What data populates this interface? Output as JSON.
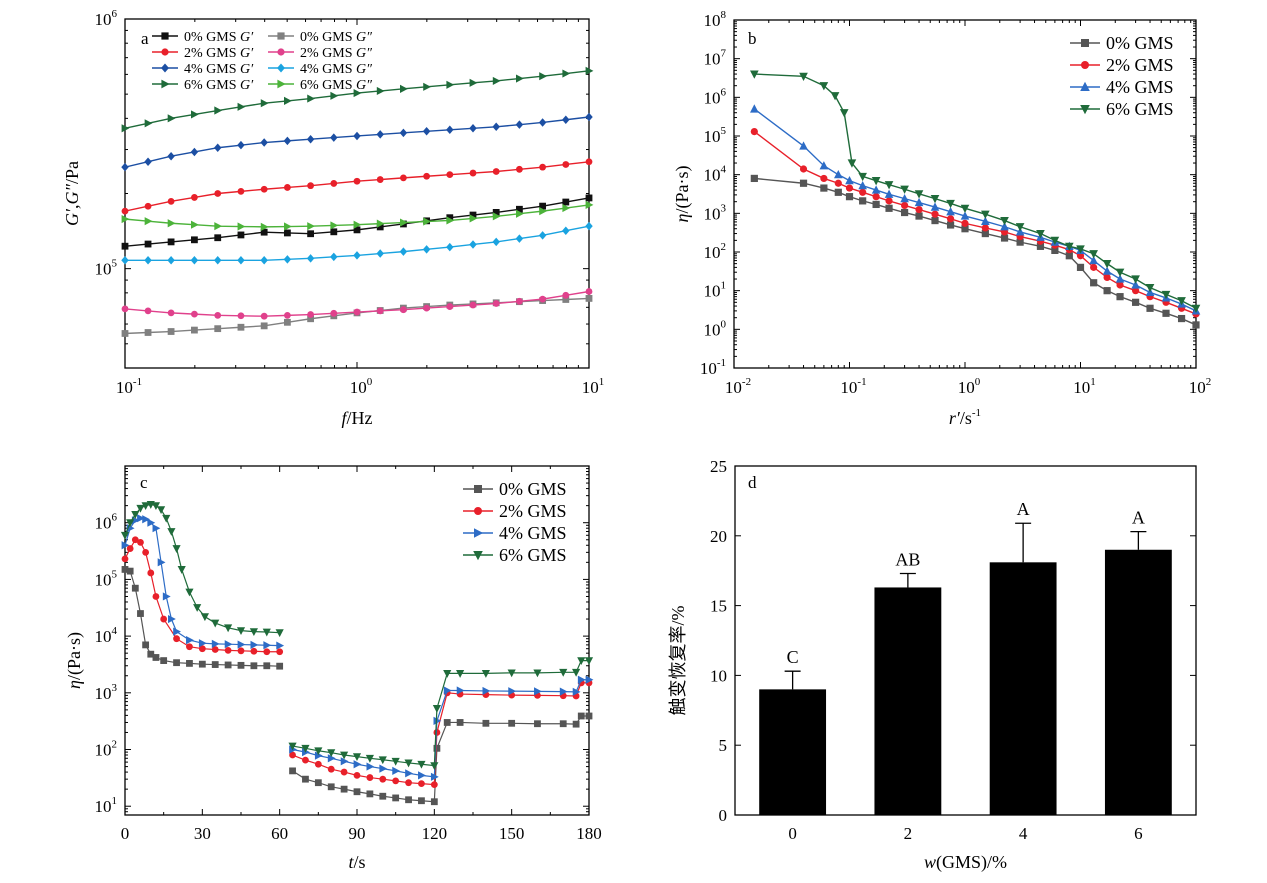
{
  "chart_data": [
    {
      "type": "line",
      "panel": "a",
      "xlabel": "f/Hz",
      "ylabel": "G′,G″/Pa",
      "xscale": "log",
      "yscale": "log",
      "xlim": [
        0.1,
        10
      ],
      "ylim": [
        40000,
        1000000
      ],
      "xticks": [
        0.1,
        1,
        10
      ],
      "xtick_labels": [
        [
          "10",
          "-1"
        ],
        [
          "10",
          "0"
        ],
        [
          "10",
          "1"
        ]
      ],
      "yticks": [
        100000,
        1000000
      ],
      "ytick_labels": [
        [
          "10",
          "5"
        ],
        [
          "10",
          "6"
        ]
      ],
      "legend_position": "top-left",
      "x": [
        0.1,
        0.158,
        0.251,
        0.398,
        0.631,
        1.0,
        1.585,
        2.512,
        3.981,
        6.31,
        10.0
      ],
      "series": [
        {
          "name": "0% GMS G′",
          "color": "#111111",
          "marker": "square",
          "values": [
            123000,
            128000,
            133000,
            140000,
            138000,
            143000,
            151000,
            160000,
            168000,
            178000,
            192000
          ]
        },
        {
          "name": "2% GMS G′",
          "color": "#e8202a",
          "marker": "circle",
          "values": [
            170000,
            186000,
            200000,
            208000,
            215000,
            224000,
            231000,
            238000,
            245000,
            255000,
            268000
          ]
        },
        {
          "name": "4% GMS G′",
          "color": "#1c4fa3",
          "marker": "diamond",
          "values": [
            255000,
            282000,
            305000,
            320000,
            330000,
            340000,
            350000,
            360000,
            370000,
            385000,
            405000
          ]
        },
        {
          "name": "6% GMS G′",
          "color": "#1f6b3a",
          "marker": "triangle-right",
          "values": [
            365000,
            400000,
            430000,
            460000,
            480000,
            505000,
            525000,
            545000,
            565000,
            590000,
            620000
          ]
        },
        {
          "name": "0% GMS G″",
          "color": "#808080",
          "marker": "square",
          "values": [
            55000,
            56000,
            57500,
            59000,
            63000,
            66500,
            69500,
            71500,
            73000,
            74500,
            76000
          ]
        },
        {
          "name": "2% GMS G″",
          "color": "#e0418c",
          "marker": "circle",
          "values": [
            69000,
            66500,
            65000,
            64500,
            65500,
            67000,
            68500,
            70500,
            72500,
            75500,
            81000
          ]
        },
        {
          "name": "4% GMS G″",
          "color": "#1aa3e0",
          "marker": "diamond",
          "values": [
            108000,
            108000,
            108000,
            108000,
            110000,
            113000,
            117000,
            122000,
            128000,
            136000,
            148000
          ]
        },
        {
          "name": "6% GMS G″",
          "color": "#4cb33a",
          "marker": "triangle-right",
          "values": [
            158000,
            152000,
            148000,
            147000,
            148000,
            150000,
            153000,
            156000,
            162000,
            170000,
            180000
          ]
        }
      ]
    },
    {
      "type": "line",
      "panel": "b",
      "xlabel": "r′/s-1",
      "ylabel": "η/(Pa·s)",
      "xscale": "log",
      "yscale": "log",
      "xlim": [
        0.01,
        100
      ],
      "ylim": [
        0.1,
        100000000
      ],
      "xtick_labels": [
        [
          "10",
          "-2"
        ],
        [
          "10",
          "-1"
        ],
        [
          "10",
          "0"
        ],
        [
          "10",
          "1"
        ],
        [
          "10",
          "2"
        ]
      ],
      "ytick_labels": [
        [
          "10",
          "-1"
        ],
        [
          "10",
          "0"
        ],
        [
          "10",
          "1"
        ],
        [
          "10",
          "2"
        ],
        [
          "10",
          "3"
        ],
        [
          "10",
          "4"
        ],
        [
          "10",
          "5"
        ],
        [
          "10",
          "6"
        ],
        [
          "10",
          "7"
        ],
        [
          "10",
          "8"
        ]
      ],
      "legend_position": "top-right",
      "series": [
        {
          "name": "0% GMS",
          "color": "#555555",
          "marker": "square",
          "x": [
            0.015,
            0.04,
            0.06,
            0.08,
            0.1,
            0.13,
            0.17,
            0.22,
            0.3,
            0.4,
            0.55,
            0.75,
            1.0,
            1.5,
            2.2,
            3,
            4.5,
            6,
            8,
            10,
            13,
            17,
            22,
            30,
            40,
            55,
            75,
            100
          ],
          "values": [
            8000,
            6000,
            4500,
            3500,
            2700,
            2100,
            1700,
            1350,
            1050,
            850,
            650,
            500,
            400,
            300,
            230,
            180,
            140,
            110,
            80,
            40,
            16,
            10,
            7,
            5,
            3.5,
            2.6,
            1.9,
            1.3
          ]
        },
        {
          "name": "2% GMS",
          "color": "#e8202a",
          "marker": "circle",
          "x": [
            0.015,
            0.04,
            0.06,
            0.08,
            0.1,
            0.13,
            0.17,
            0.22,
            0.3,
            0.4,
            0.55,
            0.75,
            1.0,
            1.5,
            2.2,
            3,
            4.5,
            6,
            8,
            10,
            13,
            17,
            22,
            30,
            40,
            55,
            75,
            100
          ],
          "values": [
            130000,
            14000,
            8000,
            6000,
            4500,
            3500,
            2700,
            2100,
            1600,
            1250,
            950,
            720,
            550,
            420,
            330,
            250,
            190,
            150,
            115,
            80,
            40,
            22,
            14,
            10,
            7,
            5,
            3.5,
            2.5
          ]
        },
        {
          "name": "4% GMS",
          "color": "#2d6cc6",
          "marker": "triangle-up",
          "x": [
            0.015,
            0.04,
            0.06,
            0.08,
            0.1,
            0.13,
            0.17,
            0.22,
            0.3,
            0.4,
            0.55,
            0.75,
            1.0,
            1.5,
            2.2,
            3,
            4.5,
            6,
            8,
            10,
            13,
            17,
            22,
            30,
            40,
            55,
            75,
            100
          ],
          "values": [
            500000,
            55000,
            17000,
            10000,
            7000,
            5200,
            4000,
            3100,
            2400,
            1900,
            1450,
            1100,
            850,
            620,
            450,
            330,
            240,
            180,
            140,
            110,
            60,
            32,
            20,
            14,
            9,
            6.5,
            4.5,
            3
          ]
        },
        {
          "name": "6% GMS",
          "color": "#1f6b3a",
          "marker": "triangle-down",
          "x": [
            0.015,
            0.04,
            0.06,
            0.075,
            0.09,
            0.105,
            0.13,
            0.17,
            0.22,
            0.3,
            0.4,
            0.55,
            0.75,
            1.0,
            1.5,
            2.2,
            3,
            4.5,
            6,
            8,
            10,
            13,
            17,
            22,
            30,
            40,
            55,
            75,
            100
          ],
          "values": [
            4000000,
            3500000,
            2000000,
            1100000,
            400000,
            20000,
            9000,
            7000,
            5500,
            4200,
            3200,
            2400,
            1800,
            1350,
            950,
            650,
            450,
            300,
            200,
            140,
            120,
            90,
            50,
            30,
            20,
            12,
            8,
            5.5,
            3.5
          ]
        }
      ]
    },
    {
      "type": "scatter",
      "panel": "c",
      "xlabel": "t/s",
      "ylabel": "η/(Pa·s)",
      "yscale": "log",
      "xlim": [
        0,
        180
      ],
      "ylim": [
        7,
        10000000
      ],
      "xticks": [
        0,
        30,
        60,
        90,
        120,
        150,
        180
      ],
      "ytick_labels": [
        [
          "10",
          "1"
        ],
        [
          "10",
          "2"
        ],
        [
          "10",
          "3"
        ],
        [
          "10",
          "4"
        ],
        [
          "10",
          "5"
        ],
        [
          "10",
          "6"
        ]
      ],
      "legend_position": "top-right",
      "series": [
        {
          "name": "0% GMS",
          "color": "#555555",
          "marker": "square",
          "x": [
            0,
            2,
            4,
            6,
            8,
            10,
            12,
            15,
            20,
            25,
            30,
            35,
            40,
            45,
            50,
            55,
            60,
            65,
            70,
            75,
            80,
            85,
            90,
            95,
            100,
            105,
            110,
            115,
            120,
            121,
            125,
            130,
            140,
            150,
            160,
            170,
            175,
            177,
            180
          ],
          "values": [
            150000,
            140000,
            70000,
            25000,
            7000,
            4800,
            4200,
            3700,
            3400,
            3300,
            3200,
            3150,
            3100,
            3050,
            3000,
            3000,
            2950,
            42,
            30,
            26,
            22,
            20,
            18,
            16.5,
            15,
            14,
            13,
            12.5,
            12,
            105,
            300,
            300,
            290,
            290,
            285,
            285,
            280,
            390,
            390
          ]
        },
        {
          "name": "2% GMS",
          "color": "#e8202a",
          "marker": "circle",
          "x": [
            0,
            2,
            4,
            6,
            8,
            10,
            12,
            15,
            20,
            25,
            30,
            35,
            40,
            45,
            50,
            55,
            60,
            65,
            70,
            75,
            80,
            85,
            90,
            95,
            100,
            105,
            110,
            115,
            120,
            121,
            125,
            130,
            140,
            150,
            160,
            170,
            175,
            177,
            180
          ],
          "values": [
            230000,
            350000,
            500000,
            450000,
            300000,
            130000,
            50000,
            20000,
            9000,
            6500,
            6000,
            5800,
            5600,
            5500,
            5400,
            5300,
            5300,
            80,
            65,
            55,
            45,
            40,
            35,
            32,
            30,
            28,
            26,
            25,
            24,
            200,
            1000,
            950,
            930,
            910,
            900,
            890,
            880,
            1500,
            1500
          ]
        },
        {
          "name": "4% GMS",
          "color": "#2d6cc6",
          "marker": "triangle-right",
          "x": [
            0,
            2,
            4,
            6,
            8,
            10,
            12,
            14,
            16,
            18,
            20,
            25,
            30,
            35,
            40,
            45,
            50,
            55,
            60,
            65,
            70,
            75,
            80,
            85,
            90,
            95,
            100,
            105,
            110,
            115,
            120,
            121,
            125,
            130,
            140,
            150,
            160,
            170,
            175,
            177,
            180
          ],
          "values": [
            400000,
            800000,
            1100000,
            1200000,
            1150000,
            1000000,
            800000,
            200000,
            50000,
            20000,
            12000,
            8500,
            7500,
            7300,
            7200,
            7100,
            7000,
            6900,
            6800,
            100,
            90,
            78,
            70,
            62,
            55,
            50,
            46,
            42,
            38,
            35,
            33,
            320,
            1100,
            1100,
            1080,
            1070,
            1060,
            1050,
            1040,
            1700,
            1700
          ]
        },
        {
          "name": "6% GMS",
          "color": "#1f6b3a",
          "marker": "triangle-down",
          "x": [
            0,
            2,
            4,
            6,
            8,
            10,
            12,
            14,
            16,
            18,
            20,
            22,
            25,
            28,
            31,
            35,
            40,
            45,
            50,
            55,
            60,
            65,
            70,
            75,
            80,
            85,
            90,
            95,
            100,
            105,
            110,
            115,
            120,
            121,
            125,
            130,
            140,
            150,
            160,
            170,
            175,
            177,
            180
          ],
          "values": [
            600000,
            1000000,
            1400000,
            1800000,
            2000000,
            2100000,
            2000000,
            1700000,
            1200000,
            700000,
            350000,
            150000,
            60000,
            32000,
            22000,
            17000,
            14000,
            12500,
            12000,
            11800,
            11500,
            115,
            105,
            95,
            88,
            80,
            75,
            70,
            66,
            62,
            58,
            55,
            52,
            530,
            2200,
            2200,
            2200,
            2250,
            2250,
            2300,
            2300,
            3700,
            3700
          ]
        }
      ]
    },
    {
      "type": "bar",
      "panel": "d",
      "xlabel": "w(GMS)/%",
      "ylabel": "触变恢复率/%",
      "ylim": [
        0,
        25
      ],
      "yticks": [
        0,
        5,
        10,
        15,
        20,
        25
      ],
      "categories": [
        "0",
        "2",
        "4",
        "6"
      ],
      "values": [
        9.0,
        16.3,
        18.1,
        19.0
      ],
      "errors": [
        1.3,
        1.0,
        2.8,
        1.3
      ],
      "significance_labels": [
        "C",
        "AB",
        "A",
        "A"
      ],
      "color": "#000000"
    }
  ],
  "panel_letters": {
    "a": "a",
    "b": "b",
    "c": "c",
    "d": "d"
  },
  "axis_text": {
    "a_x_italic": "f",
    "a_x_rest": "/Hz",
    "a_y_G1": "G′",
    "a_y_comma": ",",
    "a_y_G2": "G″",
    "a_y_rest": "/Pa",
    "b_x_italic": "r′",
    "b_x_rest": "/s",
    "b_x_sup": "-1",
    "b_y_italic": "η",
    "b_y_rest": "/(Pa·s)",
    "c_x_italic": "t",
    "c_x_rest": "/s",
    "c_y_italic": "η",
    "c_y_rest": "/(Pa·s)",
    "d_x_italic": "w",
    "d_x_rest": "(GMS)/%",
    "d_y": "触变恢复率/%"
  }
}
